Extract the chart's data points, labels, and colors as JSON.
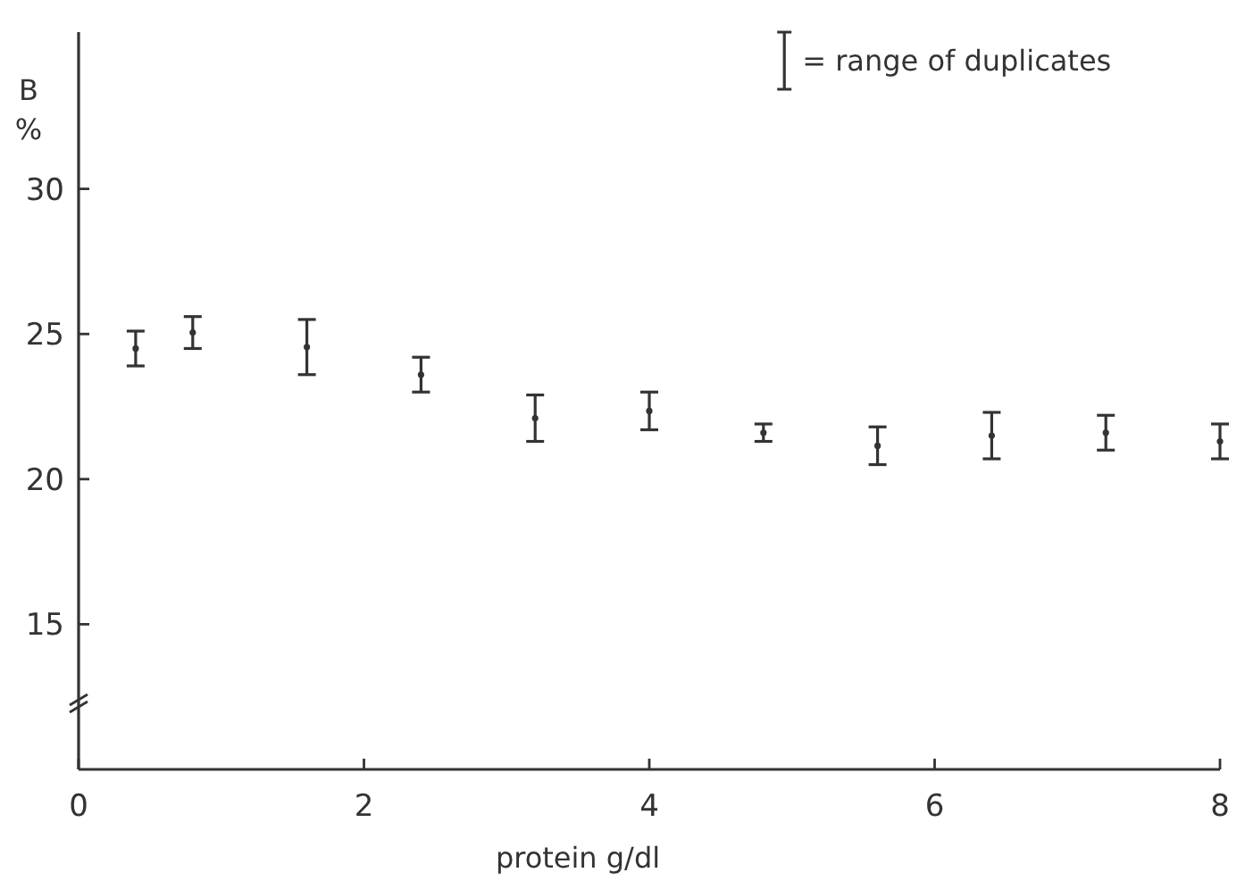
{
  "chart_data": {
    "type": "scatter",
    "xlabel": "protein g/dl",
    "ylabel": "B %",
    "xlim": [
      0,
      8
    ],
    "xticks": [
      0,
      2,
      4,
      6,
      8
    ],
    "ylim": [
      10,
      35.4
    ],
    "yticks": [
      15,
      20,
      25,
      30
    ],
    "x": [
      0.4,
      0.8,
      1.6,
      2.4,
      3.2,
      4.0,
      4.8,
      5.6,
      6.4,
      7.2,
      8.0
    ],
    "marker": "circle",
    "legend": "top right",
    "grid": false,
    "series": [
      {
        "name": "= range of duplicates",
        "color": "#333333",
        "values": [
          24.5,
          25.05,
          24.55,
          23.6,
          22.1,
          22.35,
          21.6,
          21.15,
          21.5,
          21.6,
          21.3
        ],
        "errors": [
          [
            23.9,
            25.1
          ],
          [
            24.5,
            25.6
          ],
          [
            23.6,
            25.5
          ],
          [
            23.0,
            24.2
          ],
          [
            21.3,
            22.9
          ],
          [
            21.7,
            23.0
          ],
          [
            21.3,
            21.9
          ],
          [
            20.5,
            21.8
          ],
          [
            20.7,
            22.3
          ],
          [
            21.0,
            22.2
          ],
          [
            20.7,
            21.9
          ]
        ]
      }
    ]
  }
}
